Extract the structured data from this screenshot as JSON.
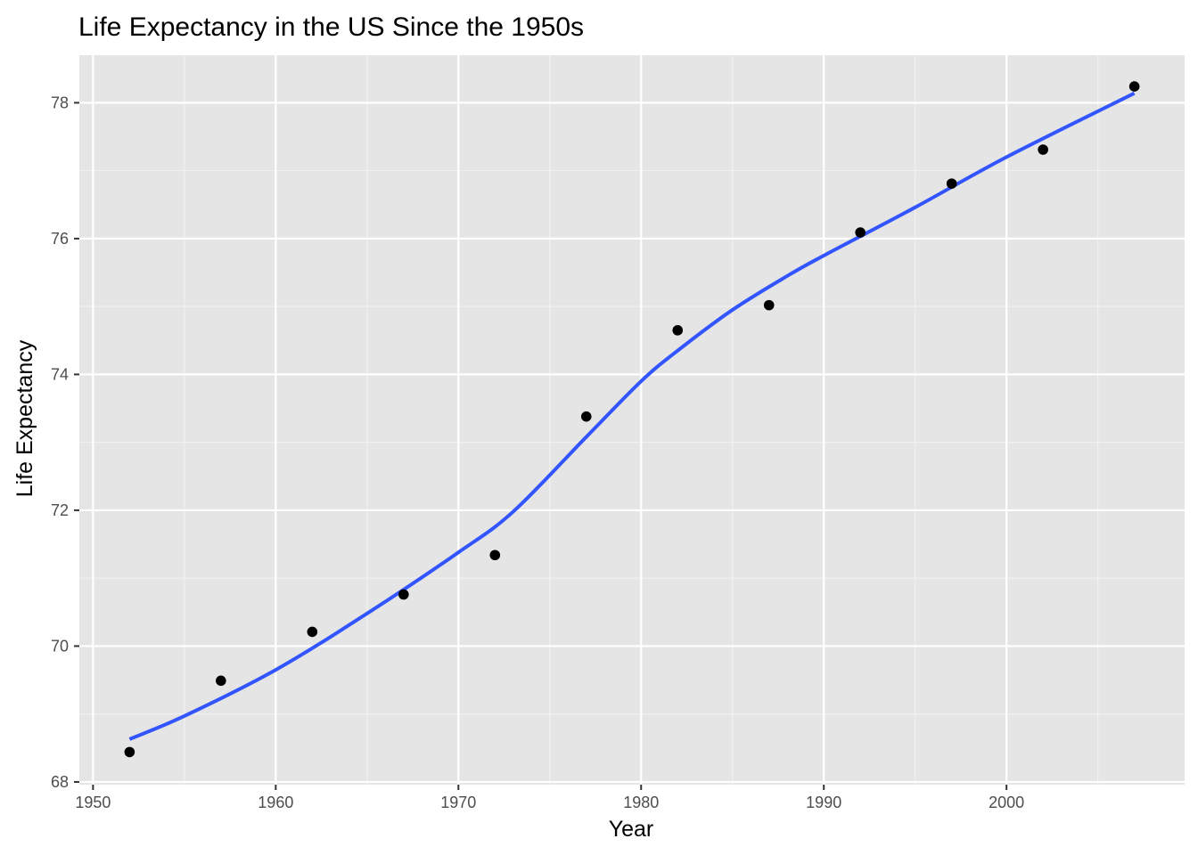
{
  "chart_data": {
    "type": "scatter",
    "title": "Life Expectancy in the US Since the 1950s",
    "xlabel": "Year",
    "ylabel": "Life Expectancy",
    "xlim": [
      1949.25,
      2009.75
    ],
    "ylim": [
      67.96,
      78.7
    ],
    "x_ticks": [
      1950,
      1960,
      1970,
      1980,
      1990,
      2000
    ],
    "y_ticks": [
      68,
      70,
      72,
      74,
      76,
      78
    ],
    "grid": true,
    "legend": "none",
    "colors": {
      "panel": "#e5e5e5",
      "grid_major": "#ffffff",
      "grid_minor": "#f2f2f2",
      "points": "#000000",
      "trend_line": "#3355ff"
    },
    "series": [
      {
        "type": "scatter",
        "x": [
          1952,
          1957,
          1962,
          1967,
          1972,
          1977,
          1982,
          1987,
          1992,
          1997,
          2002,
          2007
        ],
        "y": [
          68.44,
          69.49,
          70.21,
          70.76,
          71.34,
          73.38,
          74.65,
          75.02,
          76.09,
          76.81,
          77.31,
          78.24
        ]
      },
      {
        "type": "smooth",
        "x": [
          1952,
          1955,
          1960,
          1965,
          1970,
          1973,
          1977,
          1980,
          1982,
          1985,
          1988,
          1990,
          1995,
          2000,
          2007
        ],
        "y": [
          68.63,
          68.97,
          69.65,
          70.48,
          71.38,
          71.98,
          73.08,
          73.9,
          74.35,
          74.95,
          75.45,
          75.75,
          76.46,
          77.2,
          78.14
        ]
      }
    ]
  }
}
